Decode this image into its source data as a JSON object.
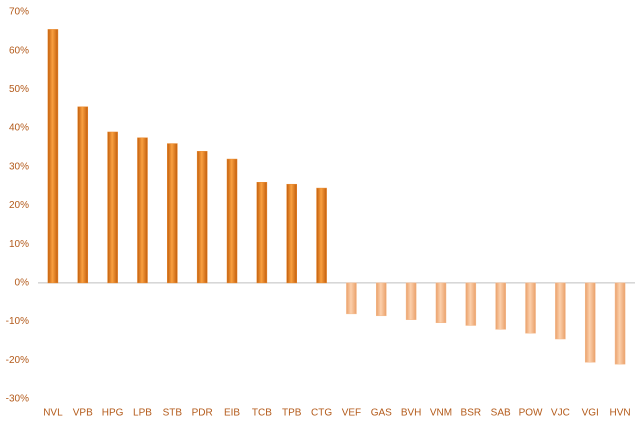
{
  "chart_data": {
    "type": "bar",
    "categories": [
      "NVL",
      "VPB",
      "HPG",
      "LPB",
      "STB",
      "PDR",
      "EIB",
      "TCB",
      "TPB",
      "CTG",
      "VEF",
      "GAS",
      "BVH",
      "VNM",
      "BSR",
      "SAB",
      "POW",
      "VJC",
      "VGI",
      "HVN"
    ],
    "values": [
      65.5,
      45.5,
      39,
      37.5,
      36,
      34,
      32,
      26,
      25.5,
      24.5,
      -8,
      -8.5,
      -9.5,
      -10.3,
      -11,
      -12,
      -13,
      -14.5,
      -20.5,
      -21
    ],
    "color": "#e8862a",
    "negative_color": "#f5b98a",
    "ylim": [
      -30,
      70
    ],
    "yticks": [
      {
        "value": -30,
        "label": "-30%"
      },
      {
        "value": -20,
        "label": "-20%"
      },
      {
        "value": -10,
        "label": "-10%"
      },
      {
        "value": 0,
        "label": "0%"
      },
      {
        "value": 10,
        "label": "10%"
      },
      {
        "value": 20,
        "label": "20%"
      },
      {
        "value": 30,
        "label": "30%"
      },
      {
        "value": 40,
        "label": "40%"
      },
      {
        "value": 50,
        "label": "50%"
      },
      {
        "value": 60,
        "label": "60%"
      },
      {
        "value": 70,
        "label": "70%"
      }
    ],
    "grid": false
  }
}
